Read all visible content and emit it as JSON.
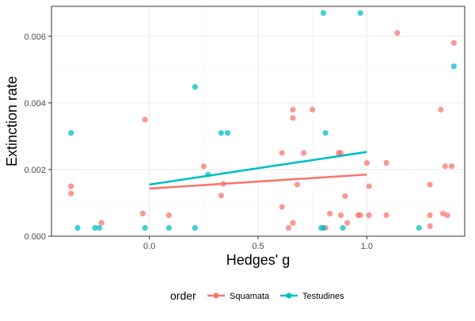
{
  "chart_data": {
    "type": "scatter",
    "xlabel": "Hedges' g",
    "ylabel": "Extinction rate",
    "xlim": [
      -0.45,
      1.45
    ],
    "ylim": [
      0.0,
      0.0069
    ],
    "x_ticks": [
      0.0,
      0.5,
      1.0
    ],
    "x_tick_labels": [
      "0.0",
      "0.5",
      "1.0"
    ],
    "y_ticks": [
      0.0,
      0.002,
      0.004,
      0.006
    ],
    "y_tick_labels": [
      "0.000",
      "0.002",
      "0.004",
      "0.006"
    ],
    "grid": true,
    "legend": {
      "title": "order",
      "placement": "bottom",
      "entries": [
        "Squamata",
        "Testudines"
      ]
    },
    "series": [
      {
        "name": "Squamata",
        "color": "#F8766D",
        "points": [
          [
            -0.36,
            0.0015
          ],
          [
            -0.36,
            0.00128
          ],
          [
            -0.22,
            0.0004
          ],
          [
            -0.02,
            0.0035
          ],
          [
            -0.03,
            0.00068
          ],
          [
            0.09,
            0.00063
          ],
          [
            0.25,
            0.0021
          ],
          [
            0.33,
            0.00122
          ],
          [
            0.34,
            0.00157
          ],
          [
            0.61,
            0.0025
          ],
          [
            0.61,
            0.00088
          ],
          [
            0.64,
            0.00025
          ],
          [
            0.66,
            0.0038
          ],
          [
            0.66,
            0.00355
          ],
          [
            0.66,
            0.0004
          ],
          [
            0.68,
            0.00155
          ],
          [
            0.71,
            0.0025
          ],
          [
            0.75,
            0.0038
          ],
          [
            0.81,
            0.00025
          ],
          [
            0.83,
            0.00068
          ],
          [
            0.87,
            0.0025
          ],
          [
            0.88,
            0.00063
          ],
          [
            0.88,
            0.0025
          ],
          [
            0.9,
            0.0012
          ],
          [
            0.91,
            0.0004
          ],
          [
            0.96,
            0.00063
          ],
          [
            0.97,
            0.00063
          ],
          [
            1.0,
            0.0022
          ],
          [
            1.01,
            0.0015
          ],
          [
            1.01,
            0.00063
          ],
          [
            1.09,
            0.0022
          ],
          [
            1.09,
            0.00063
          ],
          [
            1.14,
            0.0061
          ],
          [
            1.29,
            0.00155
          ],
          [
            1.29,
            0.00063
          ],
          [
            1.29,
            0.0003
          ],
          [
            1.34,
            0.0038
          ],
          [
            1.35,
            0.00068
          ],
          [
            1.36,
            0.0021
          ],
          [
            1.37,
            0.00063
          ],
          [
            1.39,
            0.0021
          ],
          [
            1.4,
            0.0058
          ]
        ],
        "fit": {
          "x": [
            0.0,
            1.0
          ],
          "y": [
            0.00143,
            0.00185
          ]
        }
      },
      {
        "name": "Testudines",
        "color": "#00BFC4",
        "points": [
          [
            -0.36,
            0.0031
          ],
          [
            -0.33,
            0.00025
          ],
          [
            -0.25,
            0.00025
          ],
          [
            -0.23,
            0.00025
          ],
          [
            -0.02,
            0.00025
          ],
          [
            0.09,
            0.00025
          ],
          [
            0.21,
            0.00025
          ],
          [
            0.21,
            0.00448
          ],
          [
            0.27,
            0.00185
          ],
          [
            0.33,
            0.0031
          ],
          [
            0.36,
            0.0031
          ],
          [
            0.79,
            0.00025
          ],
          [
            0.8,
            0.00025
          ],
          [
            0.81,
            0.0031
          ],
          [
            0.8,
            0.0067
          ],
          [
            0.89,
            0.00025
          ],
          [
            0.97,
            0.0067
          ],
          [
            1.24,
            0.00025
          ],
          [
            1.4,
            0.0051
          ]
        ],
        "fit": {
          "x": [
            0.0,
            1.0
          ],
          "y": [
            0.00155,
            0.00253
          ]
        }
      }
    ]
  }
}
